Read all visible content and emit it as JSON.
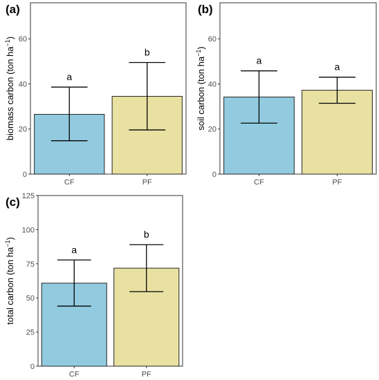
{
  "chart_data": [
    {
      "type": "bar",
      "panel": "(a)",
      "categories": [
        "CF",
        "PF"
      ],
      "values": [
        26.5,
        34.5
      ],
      "error_low": [
        14.8,
        19.6
      ],
      "error_high": [
        38.6,
        49.5
      ],
      "significance": [
        "a",
        "b"
      ],
      "ylabel": "biomass carbon (ton ha",
      "ylabel_sup": "−1",
      "ylabel_end": ")",
      "ylim": [
        0,
        76
      ],
      "yticks": [
        "0",
        "20",
        "40",
        "60"
      ],
      "colors": [
        "#92cbdf",
        "#e8e1a2"
      ],
      "grid": false
    },
    {
      "type": "bar",
      "panel": "(b)",
      "categories": [
        "CF",
        "PF"
      ],
      "values": [
        34.2,
        37.2
      ],
      "error_low": [
        22.6,
        31.4
      ],
      "error_high": [
        45.8,
        43.0
      ],
      "significance": [
        "a",
        "a"
      ],
      "ylabel": "soil carbon (ton ha",
      "ylabel_sup": "−1",
      "ylabel_end": ")",
      "ylim": [
        0,
        76
      ],
      "yticks": [
        "0",
        "20",
        "40",
        "60"
      ],
      "colors": [
        "#92cbdf",
        "#e8e1a2"
      ],
      "grid": false
    },
    {
      "type": "bar",
      "panel": "(c)",
      "categories": [
        "CF",
        "PF"
      ],
      "values": [
        60.8,
        71.8
      ],
      "error_low": [
        44.0,
        54.6
      ],
      "error_high": [
        77.8,
        89.0
      ],
      "significance": [
        "a",
        "b"
      ],
      "ylabel": "total carbon (ton ha",
      "ylabel_sup": "−1",
      "ylabel_end": ")",
      "ylim": [
        0,
        125
      ],
      "yticks": [
        "0",
        "25",
        "50",
        "75",
        "100",
        "125"
      ],
      "colors": [
        "#92cbdf",
        "#e8e1a2"
      ],
      "grid": false
    }
  ]
}
